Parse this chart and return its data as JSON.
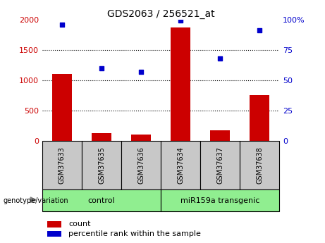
{
  "title": "GDS2063 / 256521_at",
  "samples": [
    "GSM37633",
    "GSM37635",
    "GSM37636",
    "GSM37634",
    "GSM37637",
    "GSM37638"
  ],
  "counts": [
    1100,
    130,
    100,
    1870,
    175,
    750
  ],
  "percentile_ranks": [
    96,
    60,
    57,
    99,
    68,
    91
  ],
  "bar_color": "#CC0000",
  "dot_color": "#0000CC",
  "left_ylim": [
    0,
    2000
  ],
  "right_ylim": [
    0,
    100
  ],
  "left_yticks": [
    0,
    500,
    1000,
    1500,
    2000
  ],
  "right_yticks": [
    0,
    25,
    50,
    75,
    100
  ],
  "right_yticklabels": [
    "0",
    "25",
    "50",
    "75",
    "100%"
  ],
  "left_ycolor": "#CC0000",
  "right_ycolor": "#0000CC",
  "legend_count_label": "count",
  "legend_pct_label": "percentile rank within the sample",
  "group_bottom_label": "genotype/variation",
  "group_bg_color": "#C8C8C8",
  "group_label_bg": "#90EE90",
  "group_boundaries": [
    [
      0,
      2,
      "control"
    ],
    [
      3,
      5,
      "miR159a transgenic"
    ]
  ],
  "grid_levels": [
    500,
    1000,
    1500
  ],
  "bar_width": 0.5
}
